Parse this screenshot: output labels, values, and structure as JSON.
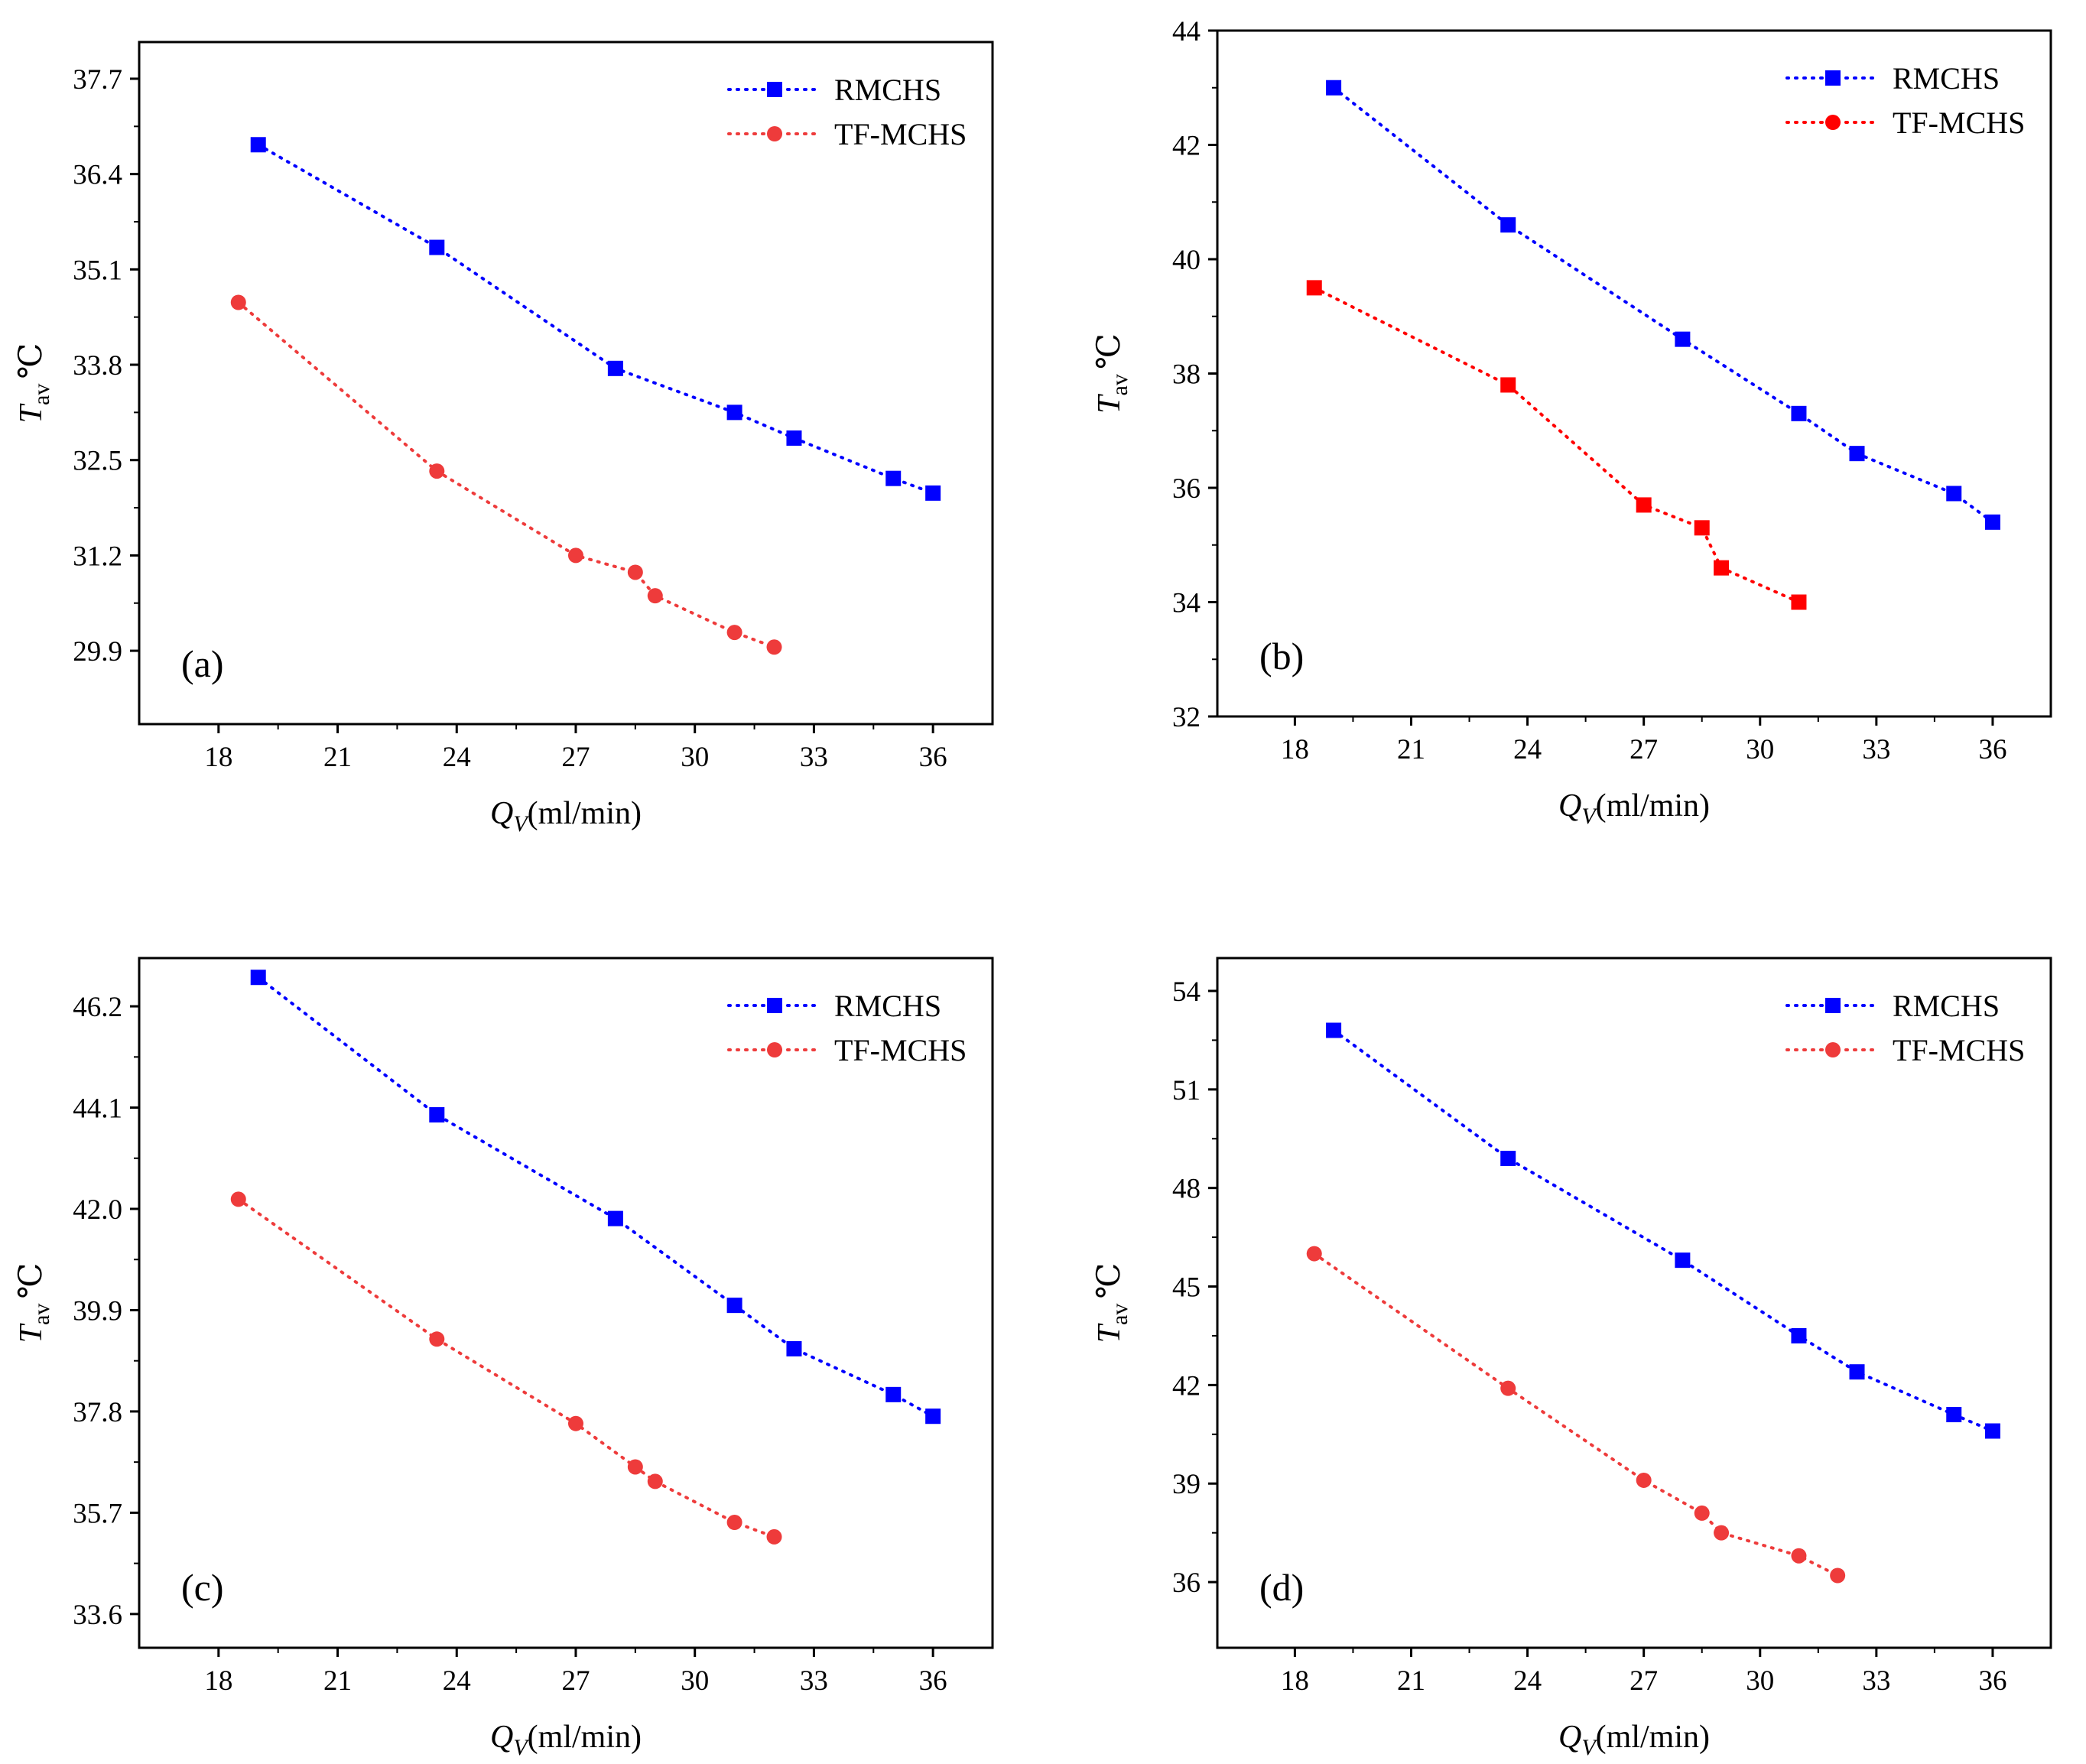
{
  "figure": {
    "colors": {
      "rmchs": "#0000ff",
      "tfmchs": "#ee3b3b",
      "tfmchs_b": "#ff0000",
      "axis": "#000000"
    }
  },
  "chart_data": [
    {
      "type": "scatter",
      "panel_label": "(a)",
      "xlabel_symbol": "Q",
      "xlabel_sub": "V",
      "xlabel_unit": "(ml/min)",
      "ylabel_symbol": "T",
      "ylabel_sub": "av",
      "ylabel_unit": "℃",
      "xlim": [
        16,
        37.5
      ],
      "ylim": [
        28.9,
        38.2
      ],
      "xticks": [
        18,
        21,
        24,
        27,
        30,
        33,
        36
      ],
      "xtick_labels": [
        "18",
        "21",
        "24",
        "27",
        "30",
        "33",
        "36"
      ],
      "yticks": [
        29.9,
        31.2,
        32.5,
        33.8,
        35.1,
        36.4,
        37.7
      ],
      "ytick_labels": [
        "29.9",
        "31.2",
        "32.5",
        "33.8",
        "35.1",
        "36.4",
        "37.7"
      ],
      "legend_position": "top-right",
      "series": [
        {
          "name": "RMCHS",
          "marker": "square",
          "color_key": "rmchs",
          "x": [
            19,
            23.5,
            28,
            31,
            32.5,
            35,
            36
          ],
          "y": [
            36.8,
            35.4,
            33.75,
            33.15,
            32.8,
            32.25,
            32.05
          ]
        },
        {
          "name": "TF-MCHS",
          "marker": "circle",
          "color_key": "tfmchs",
          "x": [
            18.5,
            23.5,
            27,
            28.5,
            29,
            31,
            32
          ],
          "y": [
            34.65,
            32.35,
            31.2,
            30.97,
            30.65,
            30.15,
            29.95
          ]
        }
      ]
    },
    {
      "type": "scatter",
      "panel_label": "(b)",
      "xlabel_symbol": "Q",
      "xlabel_sub": "V",
      "xlabel_unit": "(ml/min)",
      "ylabel_symbol": "T",
      "ylabel_sub": "av",
      "ylabel_unit": "℃",
      "xlim": [
        16,
        37.5
      ],
      "ylim": [
        32,
        44
      ],
      "xticks": [
        18,
        21,
        24,
        27,
        30,
        33,
        36
      ],
      "xtick_labels": [
        "18",
        "21",
        "24",
        "27",
        "30",
        "33",
        "36"
      ],
      "yticks": [
        32,
        34,
        36,
        38,
        40,
        42,
        44
      ],
      "ytick_labels": [
        "32",
        "34",
        "36",
        "38",
        "40",
        "42",
        "44"
      ],
      "legend_position": "top-right",
      "series": [
        {
          "name": "RMCHS",
          "marker": "square",
          "color_key": "rmchs",
          "x": [
            19,
            23.5,
            28,
            31,
            32.5,
            35,
            36
          ],
          "y": [
            43,
            40.6,
            38.6,
            37.3,
            36.6,
            35.9,
            35.4
          ]
        },
        {
          "name": "TF-MCHS",
          "marker": "square",
          "legend_marker": "circle",
          "color_key": "tfmchs_b",
          "x": [
            18.5,
            23.5,
            27,
            28.5,
            29,
            31
          ],
          "y": [
            39.5,
            37.8,
            35.7,
            35.3,
            34.6,
            34
          ]
        }
      ]
    },
    {
      "type": "scatter",
      "panel_label": "(c)",
      "xlabel_symbol": "Q",
      "xlabel_sub": "V",
      "xlabel_unit": "(ml/min)",
      "ylabel_symbol": "T",
      "ylabel_sub": "av",
      "ylabel_unit": "℃",
      "xlim": [
        16,
        37.5
      ],
      "ylim": [
        32.9,
        47.2
      ],
      "xticks": [
        18,
        21,
        24,
        27,
        30,
        33,
        36
      ],
      "xtick_labels": [
        "18",
        "21",
        "24",
        "27",
        "30",
        "33",
        "36"
      ],
      "yticks": [
        33.6,
        35.7,
        37.8,
        39.9,
        42.0,
        44.1,
        46.2
      ],
      "ytick_labels": [
        "33.6",
        "35.7",
        "37.8",
        "39.9",
        "42.0",
        "44.1",
        "46.2"
      ],
      "legend_position": "top-right",
      "series": [
        {
          "name": "RMCHS",
          "marker": "square",
          "color_key": "rmchs",
          "x": [
            19,
            23.5,
            28,
            31,
            32.5,
            35,
            36
          ],
          "y": [
            46.8,
            43.95,
            41.8,
            40.0,
            39.1,
            38.15,
            37.7
          ]
        },
        {
          "name": "TF-MCHS",
          "marker": "circle",
          "color_key": "tfmchs",
          "x": [
            18.5,
            23.5,
            27,
            28.5,
            29,
            31,
            32
          ],
          "y": [
            42.2,
            39.3,
            37.55,
            36.65,
            36.35,
            35.5,
            35.2
          ]
        }
      ]
    },
    {
      "type": "scatter",
      "panel_label": "(d)",
      "xlabel_symbol": "Q",
      "xlabel_sub": "V",
      "xlabel_unit": "(ml/min)",
      "ylabel_symbol": "T",
      "ylabel_sub": "av",
      "ylabel_unit": "℃",
      "xlim": [
        16,
        37.5
      ],
      "ylim": [
        34,
        55
      ],
      "xticks": [
        18,
        21,
        24,
        27,
        30,
        33,
        36
      ],
      "xtick_labels": [
        "18",
        "21",
        "24",
        "27",
        "30",
        "33",
        "36"
      ],
      "yticks": [
        36,
        39,
        42,
        45,
        48,
        51,
        54
      ],
      "ytick_labels": [
        "36",
        "39",
        "42",
        "45",
        "48",
        "51",
        "54"
      ],
      "legend_position": "top-right",
      "series": [
        {
          "name": "RMCHS",
          "marker": "square",
          "color_key": "rmchs",
          "x": [
            19,
            23.5,
            28,
            31,
            32.5,
            35,
            36
          ],
          "y": [
            52.8,
            48.9,
            45.8,
            43.5,
            42.4,
            41.1,
            40.6
          ]
        },
        {
          "name": "TF-MCHS",
          "marker": "circle",
          "color_key": "tfmchs",
          "x": [
            18.5,
            23.5,
            27,
            28.5,
            29,
            31,
            32
          ],
          "y": [
            46.0,
            41.9,
            39.1,
            38.1,
            37.5,
            36.8,
            36.2
          ]
        }
      ]
    }
  ]
}
